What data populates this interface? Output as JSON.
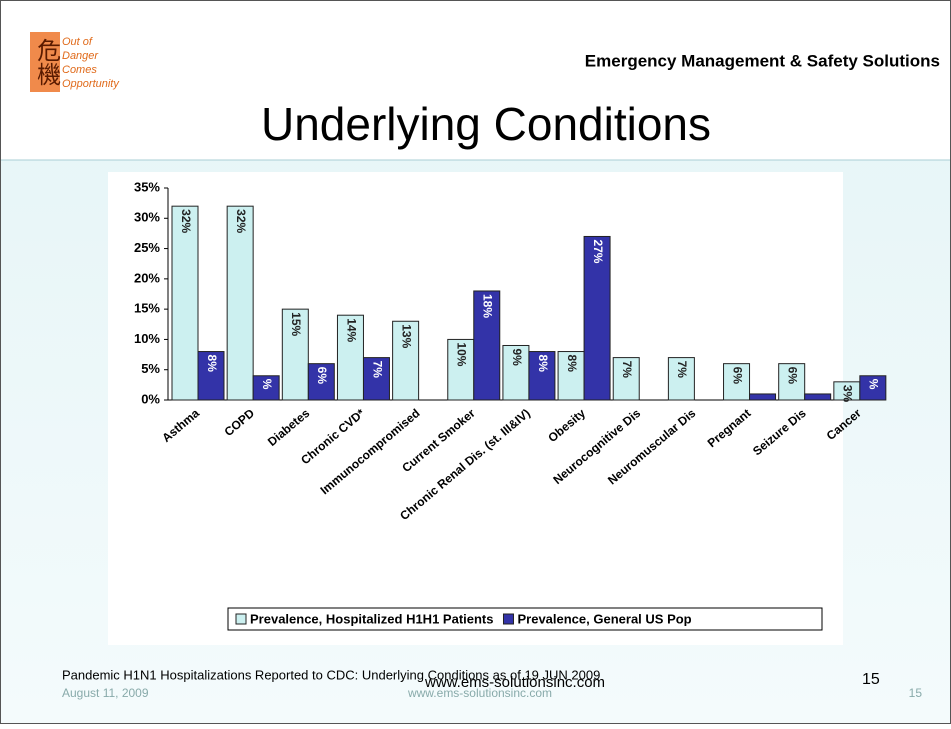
{
  "slide": {
    "logo_chars": "危機",
    "logo_lines": [
      "Out of",
      "Danger",
      "Comes",
      "Opportunity"
    ],
    "company": "Emergency Management & Safety Solutions",
    "title": "Underlying Conditions",
    "caption": "Pandemic H1N1 Hospitalizations Reported to CDC: Underlying Conditions as of 19 JUN 2009",
    "caption_url": "www.ems-solutionsinc.com",
    "caption_page": "15",
    "date": "August 11, 2009",
    "footer_url": "www.ems-solutionsinc.com",
    "footer_page": "15"
  },
  "chart_data": {
    "type": "bar",
    "categories": [
      "Asthma",
      "COPD",
      "Diabetes",
      "Chronic CVD*",
      "Immunocompromised",
      "Current Smoker",
      "Chronic Renal Dis. (st. III&IV)",
      "Obesity",
      "Neurocognitive Dis",
      "Neuromuscular Dis",
      "Pregnant",
      "Seizure Dis",
      "Cancer"
    ],
    "series": [
      {
        "name": "Prevalence, Hospitalized H1H1 Patients",
        "color": "#ccf0f0",
        "values": [
          32,
          32,
          15,
          14,
          13,
          10,
          9,
          8,
          7,
          7,
          6,
          6,
          3
        ],
        "value_labels": [
          "32%",
          "32%",
          "15%",
          "14%",
          "13%",
          "10%",
          "9%",
          "8%",
          "7%",
          "7%",
          "6%",
          "6%",
          "3%"
        ]
      },
      {
        "name": "Prevalence, General US Pop",
        "color": "#3333a8",
        "values": [
          8,
          4,
          6,
          7,
          null,
          18,
          8,
          27,
          null,
          null,
          1,
          1,
          4
        ],
        "value_labels": [
          "8%",
          "%",
          "6%",
          "7%",
          null,
          "18%",
          "8%",
          "27%",
          null,
          null,
          null,
          null,
          "%"
        ]
      }
    ],
    "ylim": [
      0,
      35
    ],
    "yticks": [
      {
        "value": 0,
        "label": "0%"
      },
      {
        "value": 5,
        "label": "5%"
      },
      {
        "value": 10,
        "label": "10%"
      },
      {
        "value": 15,
        "label": "15%"
      },
      {
        "value": 20,
        "label": "20%"
      },
      {
        "value": 25,
        "label": "25%"
      },
      {
        "value": 30,
        "label": "30%"
      },
      {
        "value": 35,
        "label": "35%"
      }
    ],
    "legend": "bottom"
  }
}
